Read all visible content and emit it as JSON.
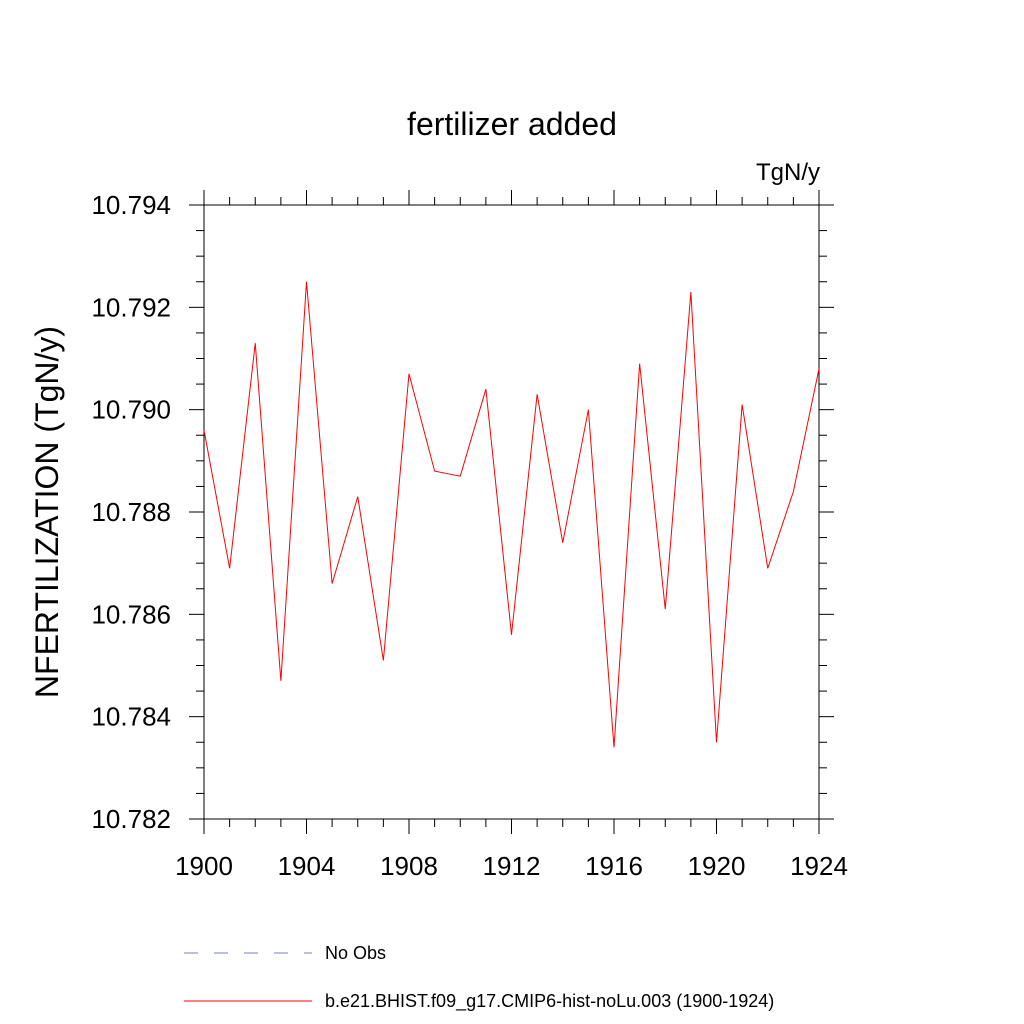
{
  "chart_data": {
    "type": "line",
    "title": "fertilizer added",
    "units": "TgN/y",
    "xlabel": "",
    "ylabel": "NFERTILIZATION  (TgN/y)",
    "xlim": [
      1900,
      1924
    ],
    "ylim": [
      10.782,
      10.794
    ],
    "x_ticks": [
      "1900",
      "1904",
      "1908",
      "1912",
      "1916",
      "1920",
      "1924"
    ],
    "y_ticks": [
      "10.782",
      "10.784",
      "10.786",
      "10.788",
      "10.790",
      "10.792",
      "10.794"
    ],
    "grid": false,
    "series": [
      {
        "name": "b.e21.BHIST.f09_g17.CMIP6-hist-noLu.003 (1900-1924)",
        "color": "#ff0000",
        "x": [
          1900,
          1901,
          1902,
          1903,
          1904,
          1905,
          1906,
          1907,
          1908,
          1909,
          1910,
          1911,
          1912,
          1913,
          1914,
          1915,
          1916,
          1917,
          1918,
          1919,
          1920,
          1921,
          1922,
          1923,
          1924
        ],
        "values": [
          10.7896,
          10.7869,
          10.7913,
          10.7847,
          10.7925,
          10.7866,
          10.7883,
          10.7851,
          10.7907,
          10.7888,
          10.7887,
          10.7904,
          10.7856,
          10.7903,
          10.7874,
          10.79,
          10.7834,
          10.7909,
          10.7861,
          10.7923,
          10.7835,
          10.7901,
          10.7869,
          10.7884,
          10.7908
        ]
      }
    ],
    "legend": [
      {
        "label": "No Obs",
        "style": "dashed",
        "color": "#7a7ad6"
      },
      {
        "label": "b.e21.BHIST.f09_g17.CMIP6-hist-noLu.003 (1900-1924)",
        "style": "solid",
        "color": "#ff0000"
      }
    ]
  }
}
